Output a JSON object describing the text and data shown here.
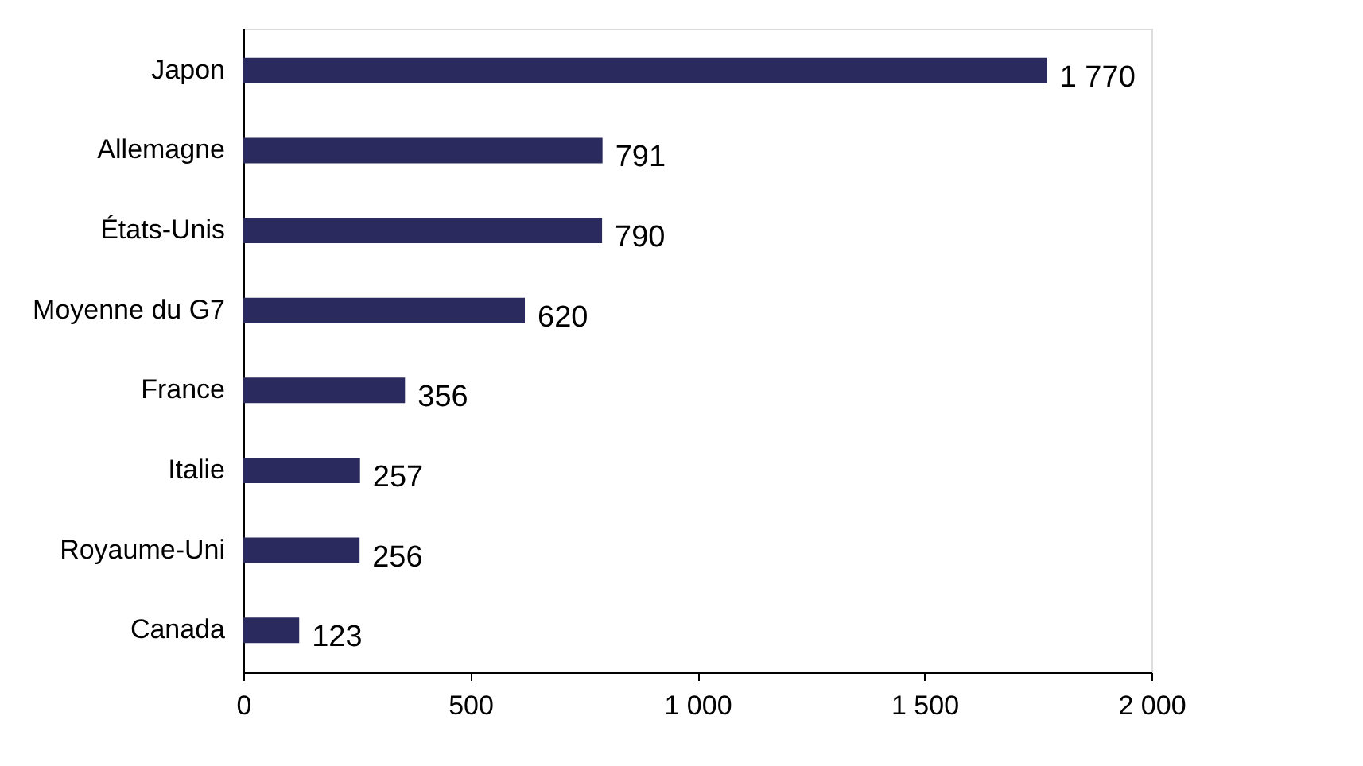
{
  "chart_data": {
    "type": "bar",
    "orientation": "horizontal",
    "categories": [
      "Japon",
      "Allemagne",
      "États-Unis",
      "Moyenne du G7",
      "France",
      "Italie",
      "Royaume-Uni",
      "Canada"
    ],
    "values": [
      1770,
      791,
      790,
      620,
      356,
      257,
      256,
      123
    ],
    "value_labels": [
      "1 770",
      "791",
      "790",
      "620",
      "356",
      "257",
      "256",
      "123"
    ],
    "color": "#2b2a5e",
    "xlim": [
      0,
      2000
    ],
    "xticks": [
      0,
      500,
      {
        "value": 1000,
        "label": "1 000"
      },
      {
        "value": 1500,
        "label": "1 500"
      },
      {
        "value": 2000,
        "label": "2 000"
      }
    ],
    "grid": false
  }
}
